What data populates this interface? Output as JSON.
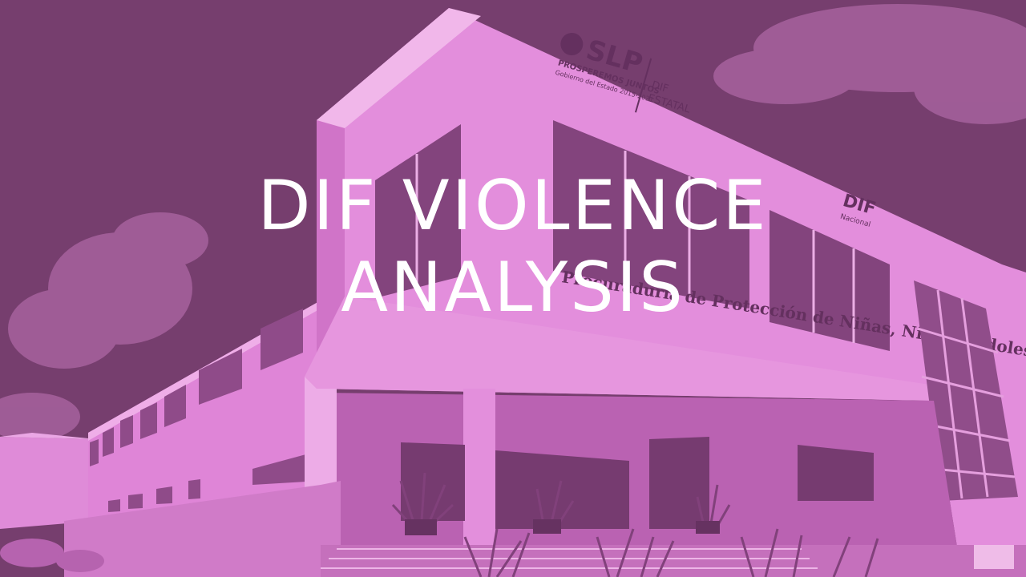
{
  "colors": {
    "sky": "#6e3b66",
    "building": "#e08ad8",
    "overlay_text": "#ffffff"
  },
  "logo": {
    "brand": "SLP",
    "tagline": "PROSPEREMOS JUNTOS",
    "subtext": "Gobierno del Estado 2015-2021",
    "dif_top": "DIF",
    "dif_bottom": "ESTATAL"
  },
  "dif_nacional": {
    "mark": "DIF",
    "sub": "Nacional"
  },
  "facade_sign": "Procuraduría de Protección de Niñas, Niños y Adolescentes",
  "title": {
    "line1": "DIF VIOLENCE",
    "line2": "ANALYSIS"
  }
}
